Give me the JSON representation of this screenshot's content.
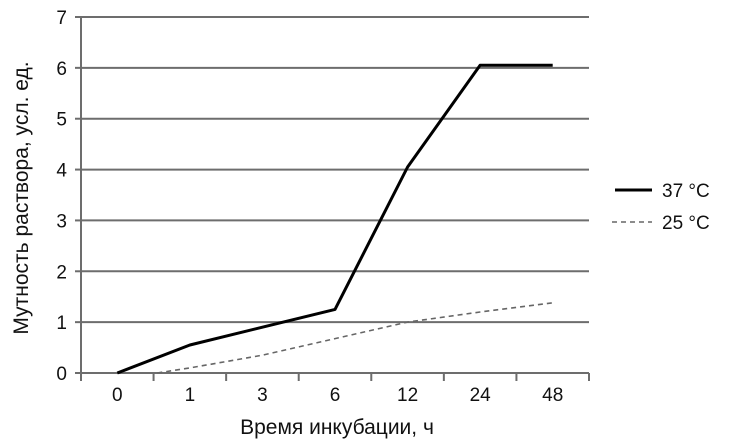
{
  "chart_data": {
    "type": "line",
    "title": "",
    "xlabel": "Время инкубации, ч",
    "ylabel": "Мутность раствора, усл. ед.",
    "categories": [
      "0",
      "1",
      "3",
      "6",
      "12",
      "24",
      "48"
    ],
    "ylim": [
      0,
      7
    ],
    "yticks": [
      "0",
      "1",
      "2",
      "3",
      "4",
      "5",
      "6",
      "7"
    ],
    "grid": "horizontal",
    "legend_position": "right",
    "series": [
      {
        "name": "37 °C",
        "style": "solid",
        "color": "#000000",
        "values": [
          0,
          0.55,
          0.9,
          1.25,
          4.05,
          6.05,
          6.05
        ]
      },
      {
        "name": "25 °C",
        "style": "dashed",
        "color": "#666666",
        "values": [
          0,
          0.1,
          0.35,
          null,
          1.0,
          1.2,
          1.38
        ]
      }
    ]
  }
}
